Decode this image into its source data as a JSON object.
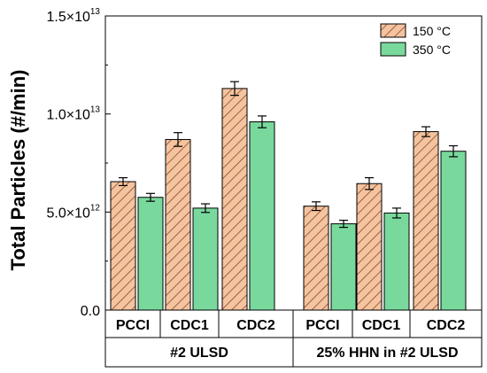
{
  "chart_data": {
    "type": "bar",
    "title": "",
    "ylabel": "Total Particles (#/min)",
    "ylim": [
      0,
      15000000000000.0
    ],
    "grid": false,
    "legend_position": "top-right",
    "y_ticks": [
      {
        "value": 0,
        "mantissa": "0.0",
        "exp": ""
      },
      {
        "value": 5000000000000.0,
        "mantissa": "5.0×10",
        "exp": "12"
      },
      {
        "value": 10000000000000.0,
        "mantissa": "1.0×10",
        "exp": "13"
      },
      {
        "value": 15000000000000.0,
        "mantissa": "1.5×10",
        "exp": "13"
      }
    ],
    "groups": [
      {
        "label": "#2 ULSD",
        "categories": [
          "PCCI",
          "CDC1",
          "CDC2"
        ]
      },
      {
        "label": "25% HHN in #2 ULSD",
        "categories": [
          "PCCI",
          "CDC1",
          "CDC2"
        ]
      }
    ],
    "categories": [
      "PCCI",
      "CDC1",
      "CDC2",
      "PCCI",
      "CDC1",
      "CDC2"
    ],
    "series": [
      {
        "name": "150 °C",
        "color": "#f4c3a0",
        "hatch": true,
        "values": [
          6550000000000.0,
          8700000000000.0,
          11300000000000.0,
          5300000000000.0,
          6450000000000.0,
          9100000000000.0
        ],
        "errors": [
          200000000000.0,
          350000000000.0,
          350000000000.0,
          220000000000.0,
          300000000000.0,
          250000000000.0
        ]
      },
      {
        "name": "350 °C",
        "color": "#79d99d",
        "hatch": false,
        "values": [
          5750000000000.0,
          5200000000000.0,
          9600000000000.0,
          4400000000000.0,
          4950000000000.0,
          8100000000000.0
        ],
        "errors": [
          200000000000.0,
          220000000000.0,
          300000000000.0,
          180000000000.0,
          250000000000.0,
          280000000000.0
        ]
      }
    ]
  }
}
